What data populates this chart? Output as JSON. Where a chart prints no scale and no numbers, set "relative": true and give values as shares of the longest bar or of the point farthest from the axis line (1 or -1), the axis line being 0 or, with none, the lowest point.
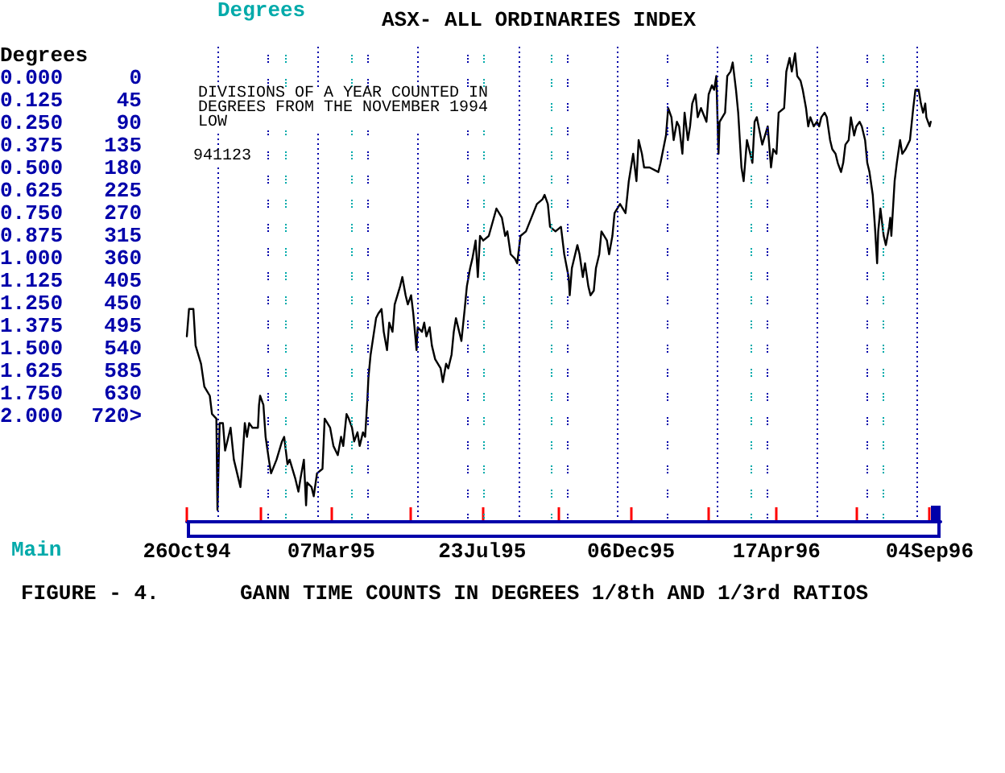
{
  "chart_data": {
    "type": "line",
    "title": "ASX- ALL ORDINARIES INDEX",
    "relative": true,
    "annotations": [
      "Degrees",
      "DIVISIONS OF A YEAR COUNTED IN DEGREES FROM THE NOVEMBER 1994 LOW",
      "941123",
      "Degrees",
      "0.000 0",
      "0.125 45",
      "0.250 90",
      "0.375 135",
      "0.500 180",
      "0.625 225",
      "0.750 270",
      "0.875 315",
      "1.000 360",
      "1.125 405",
      "1.250 450",
      "1.375 495",
      "1.500 540",
      "1.625 585",
      "1.750 630",
      "2.000 720>",
      "Main",
      "FIGURE - 4.",
      "GANN TIME COUNTS IN DEGREES 1/8th AND 1/3rd RATIOS"
    ],
    "xlim": [
      "1994-10-26",
      "1996-09-14"
    ],
    "xticks": [
      {
        "value": "1994-10-26",
        "label": "26Oct94"
      },
      {
        "value": "1995-01-02",
        "label": null
      },
      {
        "value": "1995-03-07",
        "label": "07Mar95"
      },
      {
        "value": "1995-05-18",
        "label": null
      },
      {
        "value": "1995-07-23",
        "label": "23Jul95"
      },
      {
        "value": "1995-10-01",
        "label": null
      },
      {
        "value": "1995-12-06",
        "label": "06Dec95"
      },
      {
        "value": "1996-02-14",
        "label": null
      },
      {
        "value": "1996-04-17",
        "label": "17Apr96"
      },
      {
        "value": "1996-06-29",
        "label": null
      },
      {
        "value": "1996-09-04",
        "label": "04Sep96"
      }
    ],
    "x": [
      "1994-10-26",
      "1994-10-28",
      "1994-11-01",
      "1994-11-03",
      "1994-11-08",
      "1994-11-11",
      "1994-11-16",
      "1994-11-18",
      "1994-11-22",
      "1994-11-23",
      "1994-11-25",
      "1994-11-28",
      "1994-11-30",
      "1994-12-05",
      "1994-12-08",
      "1994-12-14",
      "1994-12-15",
      "1994-12-18",
      "1994-12-20",
      "1994-12-22",
      "1994-12-25",
      "1994-12-30",
      "1994-12-31",
      "1995-01-01",
      "1995-01-04",
      "1995-01-06",
      "1995-01-09",
      "1995-01-11",
      "1995-01-16",
      "1995-01-21",
      "1995-01-23",
      "1995-01-26",
      "1995-01-28",
      "1995-02-02",
      "1995-02-05",
      "1995-02-07",
      "1995-02-10",
      "1995-02-12",
      "1995-02-13",
      "1995-02-17",
      "1995-02-19",
      "1995-02-22",
      "1995-02-27",
      "1995-03-01",
      "1995-03-06",
      "1995-03-09",
      "1995-03-13",
      "1995-03-16",
      "1995-03-18",
      "1995-03-21",
      "1995-03-23",
      "1995-03-26",
      "1995-03-28",
      "1995-03-31",
      "1995-04-02",
      "1995-04-05",
      "1995-04-07",
      "1995-04-09",
      "1995-04-10",
      "1995-04-12",
      "1995-04-17",
      "1995-04-19",
      "1995-04-22",
      "1995-04-24",
      "1995-04-27",
      "1995-04-29",
      "1995-05-02",
      "1995-05-04",
      "1995-05-09",
      "1995-05-11",
      "1995-05-14",
      "1995-05-16",
      "1995-05-19",
      "1995-05-21",
      "1995-05-24",
      "1995-05-25",
      "1995-05-29",
      "1995-05-31",
      "1995-06-02",
      "1995-06-05",
      "1995-06-07",
      "1995-06-10",
      "1995-06-15",
      "1995-06-17",
      "1995-06-20",
      "1995-06-22",
      "1995-06-25",
      "1995-06-27",
      "1995-06-29",
      "1995-07-02",
      "1995-07-04",
      "1995-07-07",
      "1995-07-09",
      "1995-07-12",
      "1995-07-14",
      "1995-07-17",
      "1995-07-19",
      "1995-07-21",
      "1995-07-24",
      "1995-07-29",
      "1995-08-05",
      "1995-08-10",
      "1995-08-13",
      "1995-08-15",
      "1995-08-18",
      "1995-08-22",
      "1995-08-24",
      "1995-08-27",
      "1995-09-01",
      "1995-09-06",
      "1995-09-11",
      "1995-09-16",
      "1995-09-18",
      "1995-09-21",
      "1995-09-23",
      "1995-09-28",
      "1995-10-03",
      "1995-10-06",
      "1995-10-10",
      "1995-10-11",
      "1995-10-13",
      "1995-10-18",
      "1995-10-20",
      "1995-10-23",
      "1995-10-25",
      "1995-10-28",
      "1995-10-30",
      "1995-11-02",
      "1995-11-04",
      "1995-11-07",
      "1995-11-09",
      "1995-11-14",
      "1995-11-16",
      "1995-11-19",
      "1995-11-21",
      "1995-11-26",
      "1995-12-01",
      "1995-12-04",
      "1995-12-06",
      "1995-12-08",
      "1995-12-11",
      "1995-12-13",
      "1995-12-16",
      "1995-12-18",
      "1995-12-23",
      "1995-12-31",
      "1996-01-02",
      "1996-01-07",
      "1996-01-09",
      "1996-01-12",
      "1996-01-14",
      "1996-01-17",
      "1996-01-19",
      "1996-01-22",
      "1996-01-24",
      "1996-01-27",
      "1996-01-29",
      "1996-01-31",
      "1996-02-03",
      "1996-02-05",
      "1996-02-08",
      "1996-02-13",
      "1996-02-15",
      "1996-02-18",
      "1996-02-20",
      "1996-02-22",
      "1996-02-24",
      "1996-02-25",
      "1996-03-01",
      "1996-03-03",
      "1996-03-06",
      "1996-03-08",
      "1996-03-11",
      "1996-03-13",
      "1996-03-16",
      "1996-03-18",
      "1996-03-21",
      "1996-03-26",
      "1996-03-28",
      "1996-03-30",
      "1996-04-04",
      "1996-04-09",
      "1996-04-12",
      "1996-04-14",
      "1996-04-17",
      "1996-04-19",
      "1996-04-24",
      "1996-04-26",
      "1996-04-29",
      "1996-05-01",
      "1996-05-04",
      "1996-05-06",
      "1996-05-09",
      "1996-05-11",
      "1996-05-14",
      "1996-05-16",
      "1996-05-18",
      "1996-05-21",
      "1996-05-24",
      "1996-05-26",
      "1996-05-28",
      "1996-05-31",
      "1996-06-02",
      "1996-06-05",
      "1996-06-07",
      "1996-06-10",
      "1996-06-12",
      "1996-06-15",
      "1996-06-17",
      "1996-06-19",
      "1996-06-22",
      "1996-06-24",
      "1996-06-27",
      "1996-06-29",
      "1996-07-02",
      "1996-07-04",
      "1996-07-07",
      "1996-07-09",
      "1996-07-11",
      "1996-07-14",
      "1996-07-16",
      "1996-07-18",
      "1996-07-19",
      "1996-07-21",
      "1996-07-24",
      "1996-07-26",
      "1996-07-29",
      "1996-07-30",
      "1996-07-31",
      "1996-08-03",
      "1996-08-05",
      "1996-08-08",
      "1996-08-10",
      "1996-08-13",
      "1996-08-15",
      "1996-08-17",
      "1996-08-20",
      "1996-08-22",
      "1996-08-25",
      "1996-08-27",
      "1996-08-29",
      "1996-08-31",
      "1996-09-01",
      "1996-09-04",
      "1996-09-05"
    ],
    "series": [
      {
        "color": "#000000",
        "values": [
          0.38,
          0.44,
          0.44,
          0.36,
          0.32,
          0.27,
          0.25,
          0.21,
          0.2,
          0,
          0.19,
          0.19,
          0.13,
          0.18,
          0.11,
          0.05,
          0.08,
          0.19,
          0.16,
          0.19,
          0.18,
          0.18,
          0.23,
          0.25,
          0.23,
          0.16,
          0.11,
          0.08,
          0.11,
          0.15,
          0.16,
          0.1,
          0.11,
          0.07,
          0.04,
          0.07,
          0.11,
          0.01,
          0.06,
          0.05,
          0.03,
          0.08,
          0.09,
          0.2,
          0.18,
          0.14,
          0.12,
          0.16,
          0.14,
          0.21,
          0.2,
          0.18,
          0.15,
          0.17,
          0.14,
          0.17,
          0.16,
          0.24,
          0.29,
          0.34,
          0.42,
          0.43,
          0.44,
          0.39,
          0.35,
          0.41,
          0.39,
          0.45,
          0.49,
          0.51,
          0.47,
          0.45,
          0.47,
          0.43,
          0.35,
          0.4,
          0.39,
          0.41,
          0.38,
          0.4,
          0.36,
          0.33,
          0.31,
          0.28,
          0.32,
          0.31,
          0.34,
          0.39,
          0.42,
          0.39,
          0.37,
          0.44,
          0.49,
          0.53,
          0.55,
          0.59,
          0.51,
          0.6,
          0.59,
          0.6,
          0.66,
          0.64,
          0.6,
          0.61,
          0.56,
          0.55,
          0.54,
          0.6,
          0.61,
          0.64,
          0.67,
          0.68,
          0.69,
          0.67,
          0.62,
          0.61,
          0.62,
          0.56,
          0.51,
          0.47,
          0.53,
          0.58,
          0.56,
          0.51,
          0.54,
          0.49,
          0.47,
          0.48,
          0.53,
          0.56,
          0.61,
          0.59,
          0.56,
          0.6,
          0.65,
          0.67,
          0.65,
          0.72,
          0.75,
          0.78,
          0.72,
          0.81,
          0.78,
          0.75,
          0.75,
          0.74,
          0.76,
          0.82,
          0.88,
          0.86,
          0.81,
          0.85,
          0.84,
          0.78,
          0.87,
          0.81,
          0.84,
          0.89,
          0.91,
          0.86,
          0.88,
          0.85,
          0.91,
          0.93,
          0.92,
          0.95,
          0.78,
          0.85,
          0.87,
          0.95,
          0.96,
          0.98,
          0.92,
          0.87,
          0.75,
          0.72,
          0.81,
          0.76,
          0.85,
          0.86,
          0.8,
          0.84,
          0.75,
          0.79,
          0.78,
          0.87,
          0.88,
          0.96,
          0.99,
          0.96,
          1,
          0.95,
          0.94,
          0.92,
          0.88,
          0.84,
          0.86,
          0.84,
          0.85,
          0.84,
          0.86,
          0.87,
          0.86,
          0.81,
          0.79,
          0.78,
          0.76,
          0.74,
          0.76,
          0.8,
          0.81,
          0.86,
          0.82,
          0.84,
          0.85,
          0.84,
          0.81,
          0.76,
          0.74,
          0.69,
          0.62,
          0.54,
          0.61,
          0.66,
          0.6,
          0.58,
          0.62,
          0.64,
          0.6,
          0.72,
          0.76,
          0.81,
          0.78,
          0.79,
          0.8,
          0.81,
          0.88,
          0.92,
          0.92,
          0.89,
          0.87,
          0.89,
          0.86,
          0.84,
          0.85
        ]
      }
    ],
    "ref_lines": [
      {
        "axis": "x",
        "value": "1994-11-23",
        "color": "#0000aa",
        "line_style": "dotted"
      },
      {
        "axis": "x",
        "value": "1995-01-08",
        "color": "#0000aa",
        "line_style": "dashed"
      },
      {
        "axis": "x",
        "value": "1995-01-24",
        "color": "#00aaaa",
        "line_style": "dashed"
      },
      {
        "axis": "x",
        "value": "1995-02-23",
        "color": "#0000aa",
        "line_style": "dotted"
      },
      {
        "axis": "x",
        "value": "1995-03-26",
        "color": "#00aaaa",
        "line_style": "dashed"
      },
      {
        "axis": "x",
        "value": "1995-04-09",
        "color": "#0000aa",
        "line_style": "dashed"
      },
      {
        "axis": "x",
        "value": "1995-05-25",
        "color": "#0000aa",
        "line_style": "dotted"
      },
      {
        "axis": "x",
        "value": "1995-07-10",
        "color": "#0000aa",
        "line_style": "dashed"
      },
      {
        "axis": "x",
        "value": "1995-07-24",
        "color": "#00aaaa",
        "line_style": "dashed"
      },
      {
        "axis": "x",
        "value": "1995-08-25",
        "color": "#0000aa",
        "line_style": "dotted"
      },
      {
        "axis": "x",
        "value": "1995-09-24",
        "color": "#00aaaa",
        "line_style": "dashed"
      },
      {
        "axis": "x",
        "value": "1995-10-09",
        "color": "#0000aa",
        "line_style": "dashed"
      },
      {
        "axis": "x",
        "value": "1995-11-24",
        "color": "#0000aa",
        "line_style": "dotted"
      },
      {
        "axis": "x",
        "value": "1996-01-08",
        "color": "#0000aa",
        "line_style": "dashed"
      },
      {
        "axis": "x",
        "value": "1996-02-23",
        "color": "#0000aa",
        "line_style": "dotted"
      },
      {
        "axis": "x",
        "value": "1996-03-24",
        "color": "#00aaaa",
        "line_style": "dashed"
      },
      {
        "axis": "x",
        "value": "1996-04-08",
        "color": "#0000aa",
        "line_style": "dashed"
      },
      {
        "axis": "x",
        "value": "1996-05-24",
        "color": "#0000aa",
        "line_style": "dotted"
      },
      {
        "axis": "x",
        "value": "1996-07-09",
        "color": "#0000aa",
        "line_style": "dashed"
      },
      {
        "axis": "x",
        "value": "1996-07-24",
        "color": "#00aaaa",
        "line_style": "dashed"
      },
      {
        "axis": "x",
        "value": "1996-08-24",
        "color": "#0000aa",
        "line_style": "dotted"
      }
    ]
  }
}
